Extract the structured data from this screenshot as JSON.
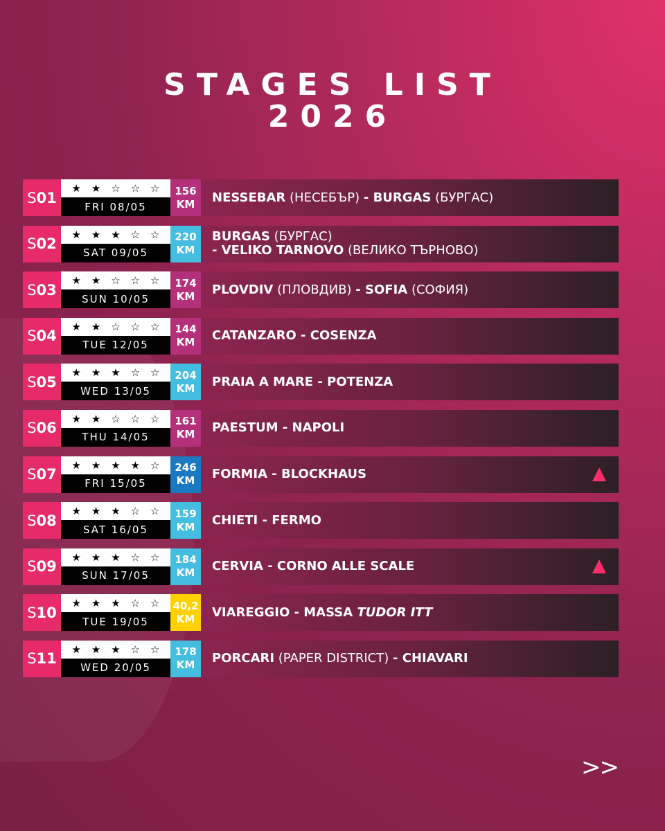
{
  "title_line1": "STAGES LIST",
  "title_line2": "2026",
  "next_label": ">>",
  "colors": {
    "magenta": "#b5307a",
    "light_blue": "#45bde0",
    "dark_blue": "#1b78c2",
    "yellow": "#ffd100",
    "stage_pink": "#e62a6a"
  },
  "stages": [
    {
      "id_s": "S",
      "id_n": "01",
      "rating": 2,
      "date": "FRI 08/05",
      "km": "156",
      "km_unit": "KM",
      "km_color": "#b5307a",
      "parts": [
        [
          "NESSEBAR",
          "b"
        ],
        [
          " (НЕСЕБЪР) ",
          "l"
        ],
        [
          "- BURGAS",
          "b"
        ],
        [
          " (БУРГАС)",
          "l"
        ]
      ],
      "climb": false
    },
    {
      "id_s": "S",
      "id_n": "02",
      "rating": 3,
      "date": "SAT 09/05",
      "km": "220",
      "km_unit": "KM",
      "km_color": "#45bde0",
      "parts": [
        [
          "BURGAS",
          "b"
        ],
        [
          " (БУРГАС)",
          "l"
        ],
        [
          "\n",
          "br"
        ],
        [
          "- VELIKO TARNOVO",
          "b"
        ],
        [
          " (ВЕЛИКО ТЪРНОВО)",
          "l"
        ]
      ],
      "climb": false
    },
    {
      "id_s": "S",
      "id_n": "03",
      "rating": 2,
      "date": "SUN 10/05",
      "km": "174",
      "km_unit": "KM",
      "km_color": "#b5307a",
      "parts": [
        [
          "PLOVDIV",
          "b"
        ],
        [
          " (ПЛОВДИВ) ",
          "l"
        ],
        [
          "- SOFIA",
          "b"
        ],
        [
          " (СОФИЯ)",
          "l"
        ]
      ],
      "climb": false
    },
    {
      "id_s": "S",
      "id_n": "04",
      "rating": 2,
      "date": "TUE 12/05",
      "km": "144",
      "km_unit": "KM",
      "km_color": "#b5307a",
      "parts": [
        [
          "CATANZARO - COSENZA",
          "b"
        ]
      ],
      "climb": false
    },
    {
      "id_s": "S",
      "id_n": "05",
      "rating": 3,
      "date": "WED 13/05",
      "km": "204",
      "km_unit": "KM",
      "km_color": "#45bde0",
      "parts": [
        [
          "PRAIA A MARE - POTENZA",
          "b"
        ]
      ],
      "climb": false
    },
    {
      "id_s": "S",
      "id_n": "06",
      "rating": 2,
      "date": "THU 14/05",
      "km": "161",
      "km_unit": "KM",
      "km_color": "#b5307a",
      "parts": [
        [
          "PAESTUM - NAPOLI",
          "b"
        ]
      ],
      "climb": false
    },
    {
      "id_s": "S",
      "id_n": "07",
      "rating": 4,
      "date": "FRI 15/05",
      "km": "246",
      "km_unit": "KM",
      "km_color": "#1b78c2",
      "parts": [
        [
          "FORMIA - BLOCKHAUS",
          "b"
        ]
      ],
      "climb": true
    },
    {
      "id_s": "S",
      "id_n": "08",
      "rating": 3,
      "date": "SAT 16/05",
      "km": "159",
      "km_unit": "KM",
      "km_color": "#45bde0",
      "parts": [
        [
          "CHIETI - FERMO",
          "b"
        ]
      ],
      "climb": false
    },
    {
      "id_s": "S",
      "id_n": "09",
      "rating": 3,
      "date": "SUN 17/05",
      "km": "184",
      "km_unit": "KM",
      "km_color": "#45bde0",
      "parts": [
        [
          "CERVIA - CORNO ALLE SCALE",
          "b"
        ]
      ],
      "climb": true
    },
    {
      "id_s": "S",
      "id_n": "10",
      "rating": 3,
      "date": "TUE 19/05",
      "km": "40,2",
      "km_unit": "KM",
      "km_color": "#ffd100",
      "parts": [
        [
          "VIAREGGIO - MASSA ",
          "b"
        ],
        [
          "TUDOR ITT",
          "i"
        ]
      ],
      "climb": false
    },
    {
      "id_s": "S",
      "id_n": "11",
      "rating": 3,
      "date": "WED 20/05",
      "km": "178",
      "km_unit": "KM",
      "km_color": "#45bde0",
      "parts": [
        [
          "PORCARI",
          "b"
        ],
        [
          " (PAPER DISTRICT) ",
          "l"
        ],
        [
          "- CHIAVARI",
          "b"
        ]
      ],
      "climb": false
    }
  ]
}
